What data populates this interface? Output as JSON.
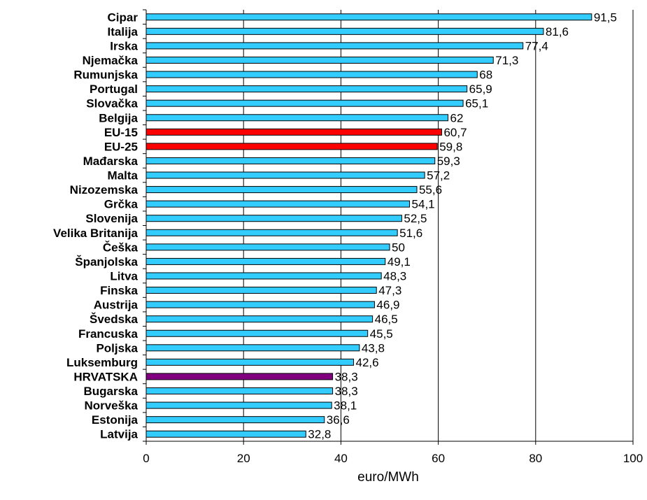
{
  "chart_data": {
    "type": "bar",
    "orientation": "horizontal",
    "categories": [
      "Cipar",
      "Italija",
      "Irska",
      "Njemačka",
      "Rumunjska",
      "Portugal",
      "Slovačka",
      "Belgija",
      "EU-15",
      "EU-25",
      "Mađarska",
      "Malta",
      "Nizozemska",
      "Grčka",
      "Slovenija",
      "Velika Britanija",
      "Češka",
      "Španjolska",
      "Litva",
      "Finska",
      "Austrija",
      "Švedska",
      "Francuska",
      "Poljska",
      "Luksemburg",
      "HRVATSKA",
      "Bugarska",
      "Norveška",
      "Estonija",
      "Latvija"
    ],
    "values": [
      91.5,
      81.6,
      77.4,
      71.3,
      68,
      65.9,
      65.1,
      62,
      60.7,
      59.8,
      59.3,
      57.2,
      55.6,
      54.1,
      52.5,
      51.6,
      50,
      49.1,
      48.3,
      47.3,
      46.9,
      46.5,
      45.5,
      43.8,
      42.6,
      38.3,
      38.3,
      38.1,
      36.6,
      32.8
    ],
    "value_labels": [
      "91,5",
      "81,6",
      "77,4",
      "71,3",
      "68",
      "65,9",
      "65,1",
      "62",
      "60,7",
      "59,8",
      "59,3",
      "57,2",
      "55,6",
      "54,1",
      "52,5",
      "51,6",
      "50",
      "49,1",
      "48,3",
      "47,3",
      "46,9",
      "46,5",
      "45,5",
      "43,8",
      "42,6",
      "38,3",
      "38,3",
      "38,1",
      "36,6",
      "32,8"
    ],
    "bar_colors": [
      "#33ccff",
      "#33ccff",
      "#33ccff",
      "#33ccff",
      "#33ccff",
      "#33ccff",
      "#33ccff",
      "#33ccff",
      "#ff0000",
      "#ff0000",
      "#33ccff",
      "#33ccff",
      "#33ccff",
      "#33ccff",
      "#33ccff",
      "#33ccff",
      "#33ccff",
      "#33ccff",
      "#33ccff",
      "#33ccff",
      "#33ccff",
      "#33ccff",
      "#33ccff",
      "#33ccff",
      "#33ccff",
      "#800080",
      "#33ccff",
      "#33ccff",
      "#33ccff",
      "#33ccff"
    ],
    "xlabel": "euro/MWh",
    "xlim": [
      0,
      100
    ],
    "xticks": [
      0,
      20,
      40,
      60,
      80,
      100
    ],
    "grid": "vertical"
  }
}
